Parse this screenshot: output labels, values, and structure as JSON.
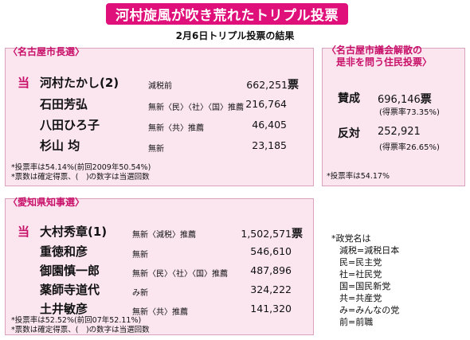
{
  "title": "河村旋風が吹き荒れたトリプル投票",
  "subtitle": "2月6日トリプル投票の結果",
  "mayor": {
    "heading": "〈名古屋市長選〉",
    "win_mark": "当",
    "candidates": [
      {
        "name": "河村たかし(2)",
        "party": "減税前",
        "votes": "662,251",
        "unit": "票"
      },
      {
        "name": "石田芳弘",
        "party": "無新〈民〉〈社〉〈国〉推薦",
        "votes": "216,764",
        "unit": ""
      },
      {
        "name": "八田ひろ子",
        "party": "無新〈共〉推薦",
        "votes": "46,405",
        "unit": ""
      },
      {
        "name": "杉山 均",
        "party": "無新",
        "votes": "23,185",
        "unit": ""
      }
    ],
    "notes": [
      "*投票率は54.14%(前回2009年50.54%)",
      "*票数は確定得票、(　)の数字は当選回数"
    ]
  },
  "referendum": {
    "heading_line1": "〈名古屋市議会解散の",
    "heading_line2": "是非を問う住民投票〉",
    "items": [
      {
        "label": "賛成",
        "votes": "696,146",
        "unit": "票",
        "rate": "(得票率73.35%)"
      },
      {
        "label": "反対",
        "votes": "252,921",
        "unit": "",
        "rate": "(得票率26.65%)"
      }
    ],
    "note": "*投票率は54.17%"
  },
  "governor": {
    "heading": "〈愛知県知事選〉",
    "win_mark": "当",
    "candidates": [
      {
        "name": "大村秀章(1)",
        "party": "無新〈減税〉推薦",
        "votes": "1,502,571",
        "unit": "票"
      },
      {
        "name": "重徳和彦",
        "party": "無新",
        "votes": "546,610",
        "unit": ""
      },
      {
        "name": "御園慎一郎",
        "party": "無新〈民〉〈社〉〈国〉推薦",
        "votes": "487,896",
        "unit": ""
      },
      {
        "name": "薬師寺道代",
        "party": "み新",
        "votes": "324,222",
        "unit": ""
      },
      {
        "name": "土井敏彦",
        "party": "無新〈共〉推薦",
        "votes": "141,320",
        "unit": ""
      }
    ],
    "notes": [
      "*投票率は52.52%(前回07年52.11%)",
      "*票数は確定得票、(　)の数字は当選回数"
    ]
  },
  "legend": [
    "*政党名は",
    "減税=減税日本",
    "民=民主党",
    "社=社民党",
    "国=国民新党",
    "共=共産党",
    "み=みんなの党",
    "前=前職"
  ],
  "colors": {
    "banner": "#e0107a",
    "accent": "#c8106a",
    "box_bg": "#fbe6ef"
  }
}
